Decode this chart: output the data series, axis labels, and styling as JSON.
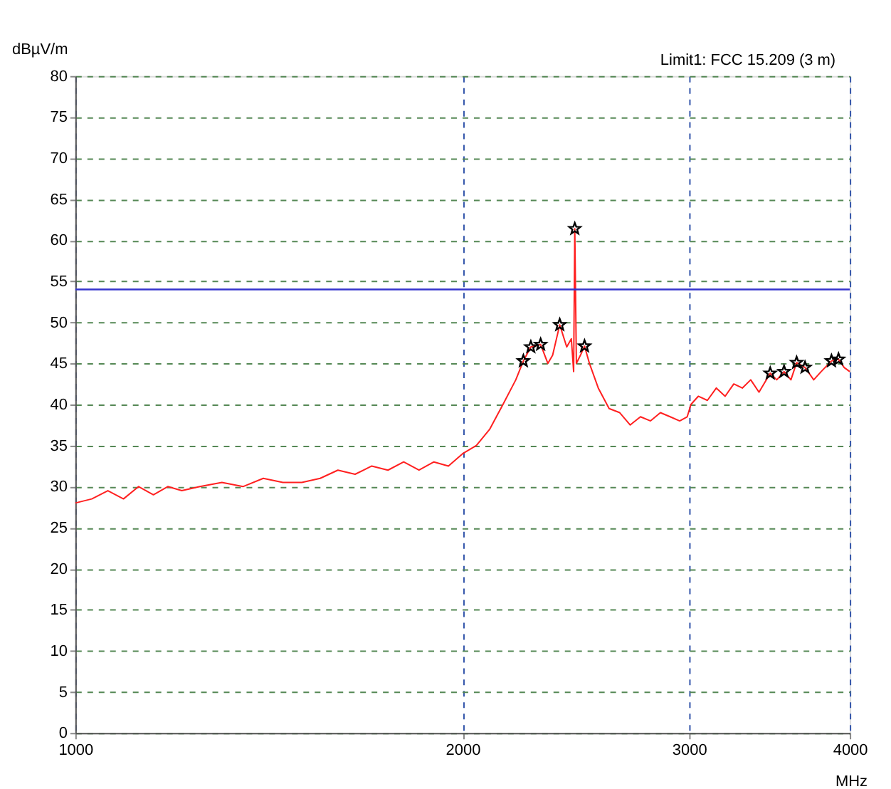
{
  "chart_data": {
    "type": "line",
    "xlabel": "MHz",
    "ylabel": "dBµV/m",
    "annotations": [
      "Limit1: FCC 15.209 (3 m)"
    ],
    "log": "x",
    "grid": true,
    "xlim": [
      1000,
      4000
    ],
    "xticks": [
      1000,
      2000,
      3000,
      4000
    ],
    "ylim": [
      0,
      80
    ],
    "yticks": [
      0,
      5,
      10,
      15,
      20,
      25,
      30,
      35,
      40,
      45,
      50,
      55,
      60,
      65,
      70,
      75,
      80
    ],
    "ref_lines": [
      {
        "axis": "y",
        "value": 54,
        "color": "#3333cc"
      }
    ],
    "series": [
      {
        "type": "line",
        "color": "#ff2020",
        "line_style": "solid",
        "x": [
          1000,
          1030,
          1060,
          1090,
          1120,
          1150,
          1180,
          1210,
          1250,
          1300,
          1350,
          1400,
          1450,
          1500,
          1550,
          1600,
          1650,
          1700,
          1750,
          1800,
          1850,
          1900,
          1950,
          2000,
          2050,
          2100,
          2150,
          2200,
          2230,
          2260,
          2300,
          2330,
          2350,
          2380,
          2410,
          2430,
          2440,
          2445,
          2452,
          2470,
          2488,
          2510,
          2550,
          2600,
          2650,
          2700,
          2750,
          2800,
          2850,
          2900,
          2950,
          2990,
          3010,
          3050,
          3100,
          3150,
          3200,
          3250,
          3300,
          3350,
          3400,
          3469,
          3510,
          3556,
          3600,
          3637,
          3692,
          3750,
          3800,
          3871,
          3920,
          3960,
          4000
        ],
        "values": [
          28,
          28.5,
          29.5,
          28.5,
          30,
          29,
          30,
          29.5,
          30,
          30.5,
          30,
          31,
          30.5,
          30.5,
          31,
          32,
          31.5,
          32.5,
          32,
          33,
          32,
          33,
          32.5,
          34,
          35,
          37,
          40,
          43,
          45.3,
          47,
          47.3,
          45,
          46,
          49.7,
          47,
          48,
          44,
          61.4,
          45,
          46,
          47.1,
          45,
          42,
          39.5,
          39,
          37.5,
          38.5,
          38,
          39,
          38.5,
          38,
          38.5,
          40,
          41,
          40.5,
          42,
          41,
          42.5,
          42,
          43,
          41.5,
          43.8,
          43,
          44,
          43,
          45.1,
          44.5,
          43,
          44,
          45.3,
          45.5,
          44.5,
          44
        ]
      },
      {
        "type": "scatter",
        "color": "#000000",
        "marker": "star",
        "x": [
          2230,
          2260,
          2300,
          2380,
          2445,
          2488,
          3469,
          3556,
          3637,
          3692,
          3871,
          3920
        ],
        "values": [
          45.3,
          47,
          47.3,
          49.7,
          61.4,
          47.1,
          43.8,
          44,
          45.1,
          44.5,
          45.3,
          45.5
        ]
      }
    ]
  }
}
